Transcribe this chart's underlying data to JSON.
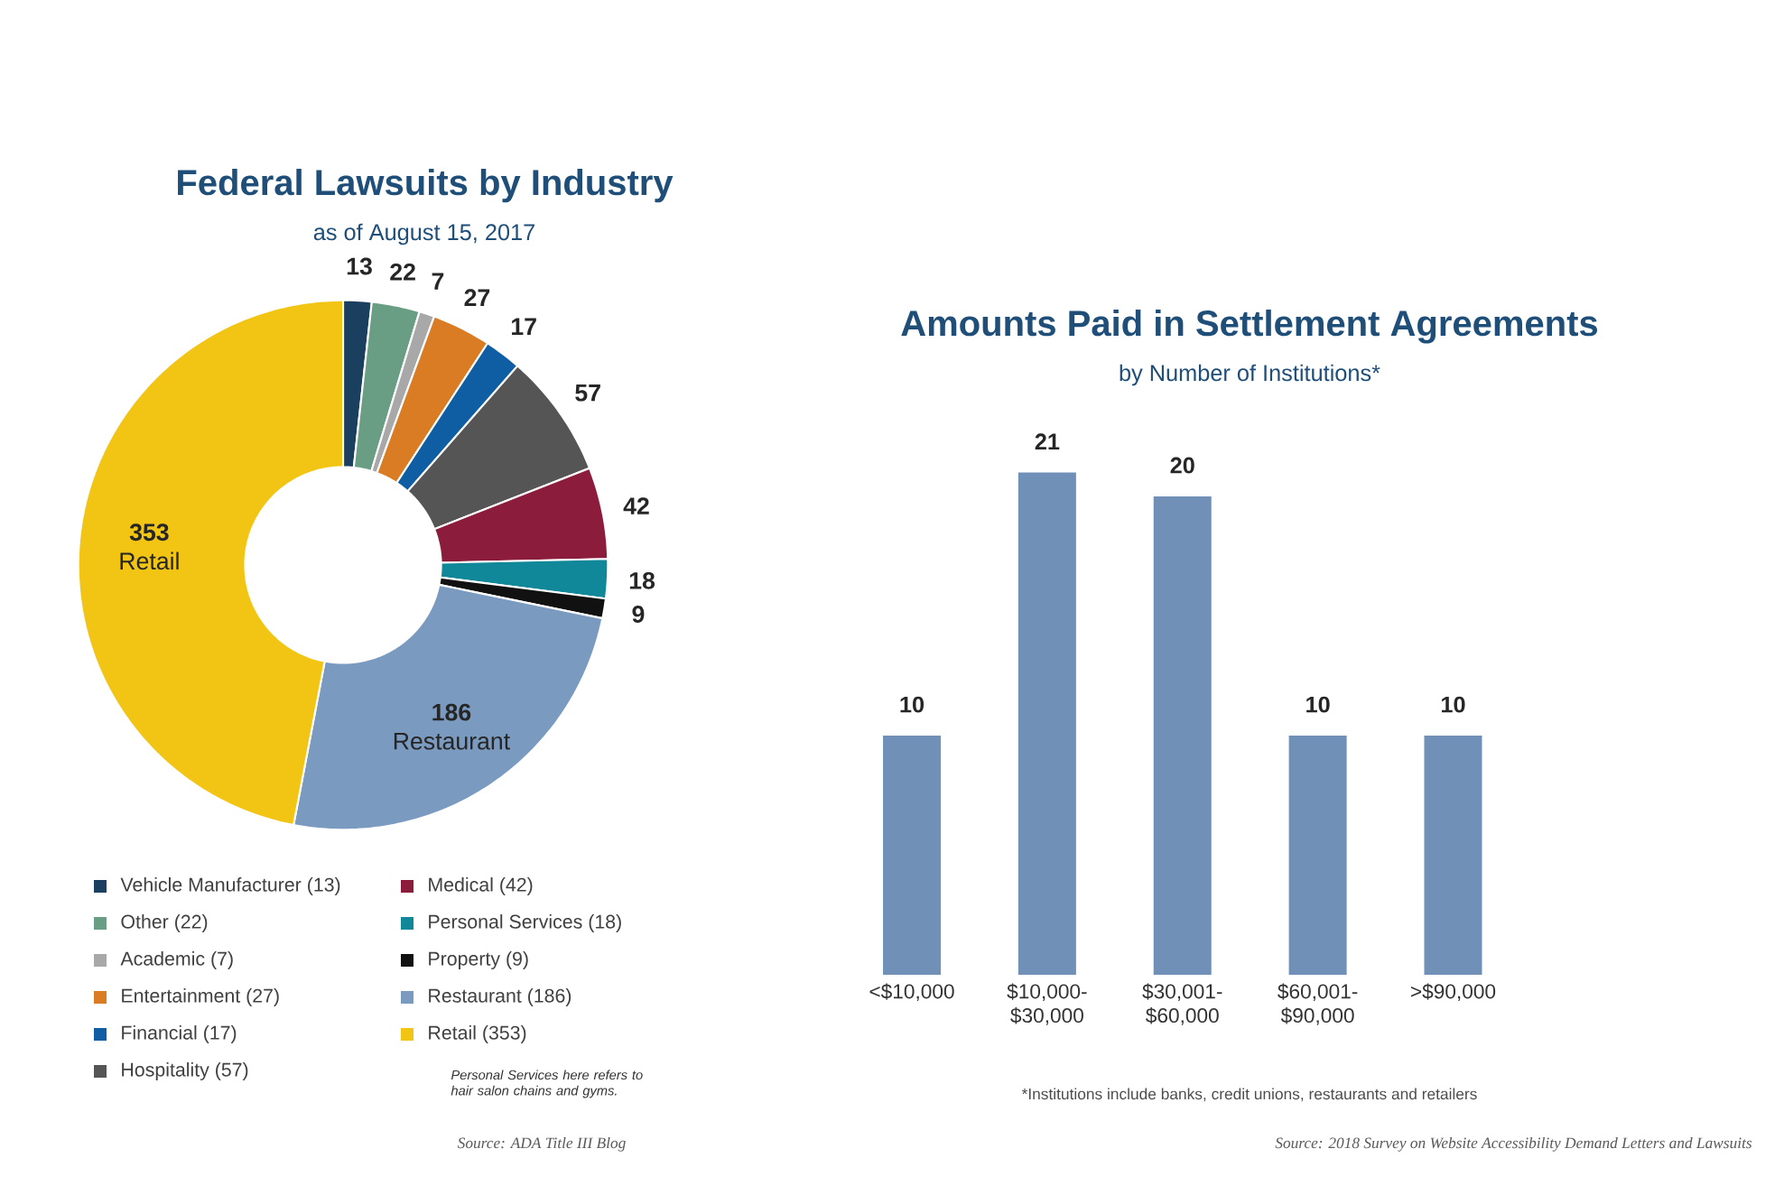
{
  "chart_data": [
    {
      "type": "donut",
      "title": "Federal Lawsuits by Industry",
      "subtitle": "as of August 15, 2017",
      "categories": [
        "Vehicle Manufacturer (13)",
        "Other (22)",
        "Academic (7)",
        "Entertainment (27)",
        "Financial (17)",
        "Hospitality (57)",
        "Medical (42)",
        "Personal Services (18)",
        "Property (9)",
        "Restaurant (186)",
        "Retail (353)"
      ],
      "values": [
        13,
        22,
        7,
        27,
        17,
        57,
        42,
        18,
        9,
        186,
        353
      ],
      "colors": [
        "#1b3f5e",
        "#6a9e84",
        "#a8a8a8",
        "#d97c24",
        "#0f5ea3",
        "#555555",
        "#8c1c3c",
        "#11879a",
        "#111111",
        "#7a9ac0",
        "#f2c514"
      ],
      "data_labels": true,
      "legend": "bottom",
      "annotations": [
        "Personal Services here refers to hair salon chains and gyms.",
        "Source: ADA Title III Blog",
        {
          "text": "Restaurant",
          "x": "Restaurant (186)"
        },
        {
          "text": "Retail",
          "x": "Retail (353)"
        }
      ]
    },
    {
      "type": "bar",
      "title": "Amounts Paid in Settlement Agreements",
      "subtitle": "by Number of Institutions*",
      "categories": [
        "<$10,000",
        "$10,000- $30,000",
        "$30,001- $60,000",
        "$60,001- $90,000",
        ">$90,000"
      ],
      "values": [
        10,
        21,
        20,
        10,
        10
      ],
      "color": "#7090b8",
      "data_labels": true,
      "annotations": [
        "*Institutions include banks, credit unions, restaurants and retailers",
        "Source: 2018 Survey on Website Accessibility Demand Letters and Lawsuits"
      ]
    }
  ]
}
